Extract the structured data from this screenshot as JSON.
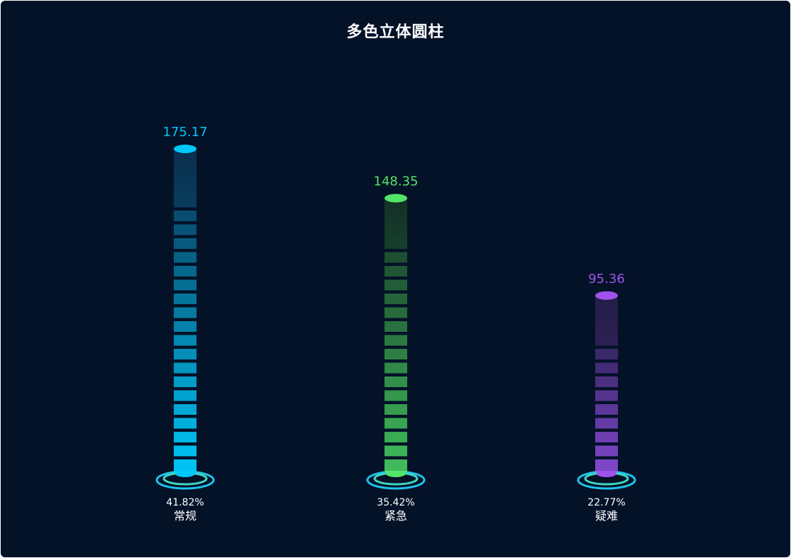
{
  "title": "多色立体圆柱",
  "colors": {
    "background": "#041228",
    "ring_outer": "#1ec3ea",
    "ring_inner": "#3fd5c0"
  },
  "chart_data": {
    "type": "bar",
    "title": "多色立体圆柱",
    "categories": [
      "常规",
      "紧急",
      "疑难"
    ],
    "values": [
      175.17,
      148.35,
      95.36
    ],
    "percentages": [
      "41.82%",
      "35.42%",
      "22.77%"
    ],
    "series": [
      {
        "name": "常规",
        "value": 175.17,
        "percent": "41.82%",
        "color": "#00c2f2",
        "cap": "#00c8f8",
        "dark": "#0a3150"
      },
      {
        "name": "紧急",
        "value": 148.35,
        "percent": "35.42%",
        "color": "#3fb95a",
        "cap": "#54e469",
        "dark": "#143427"
      },
      {
        "name": "疑难",
        "value": 95.36,
        "percent": "22.77%",
        "color": "#7d45c8",
        "cap": "#a052ec",
        "dark": "#261e4a"
      }
    ],
    "xlabel": "",
    "ylabel": "",
    "grid": false,
    "legend": "none",
    "style": "segmented 3D cylinder with base rings"
  }
}
